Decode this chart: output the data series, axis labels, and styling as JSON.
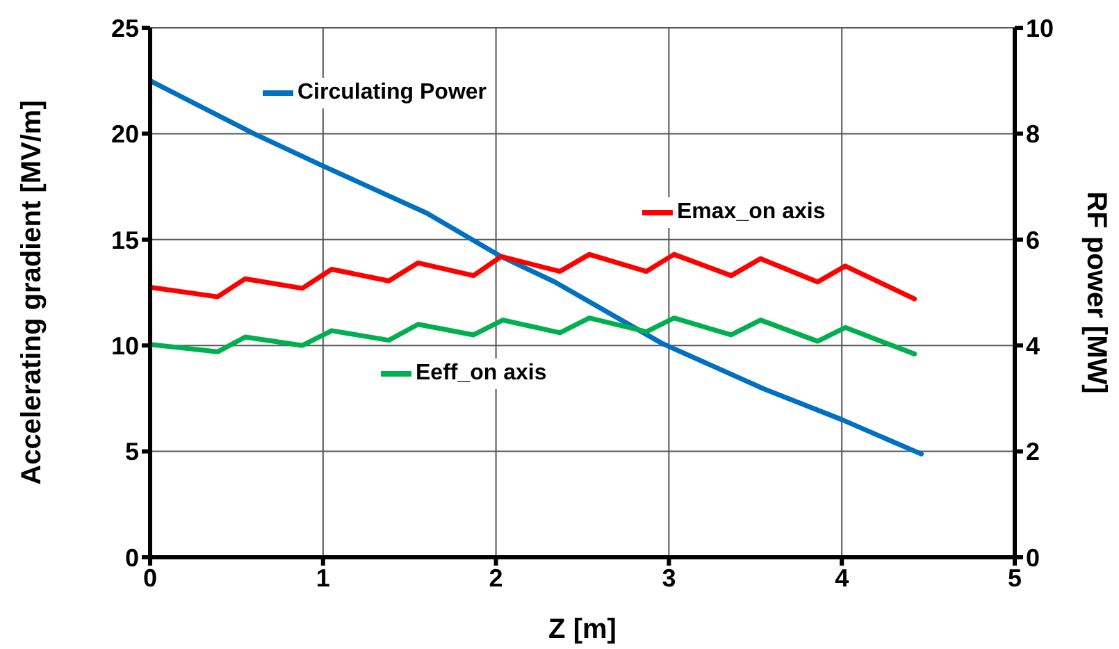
{
  "chart_data": {
    "type": "line",
    "xlabel": "Z [m]",
    "ylabel": "Accelerating gradient  [MV/m]",
    "y2label": "RF power [MW]",
    "xlim": [
      0,
      5
    ],
    "xticks": [
      0,
      1,
      2,
      3,
      4,
      5
    ],
    "ylim": [
      0,
      25
    ],
    "yticks": [
      0,
      5,
      10,
      15,
      20,
      25
    ],
    "y2lim": [
      0,
      10
    ],
    "y2ticks": [
      0,
      2,
      4,
      6,
      8,
      10
    ],
    "grid": true,
    "legend": "top left",
    "marker": "none",
    "line_style": "solid",
    "series": [
      {
        "name": "Circulating Power",
        "color": "#0070c0",
        "axis": "y2",
        "x": [
          0,
          0.6,
          1.0,
          1.6,
          2.03,
          2.34,
          2.96,
          3.55,
          4.0,
          4.46
        ],
        "values": [
          9.0,
          8.0,
          7.39,
          6.5,
          5.68,
          5.2,
          4.04,
          3.18,
          2.6,
          1.95
        ]
      },
      {
        "name": "Emax_on axis",
        "color": "#ff0000",
        "x": [
          0,
          0.39,
          0.55,
          0.88,
          1.05,
          1.38,
          1.55,
          1.87,
          2.03,
          2.37,
          2.54,
          2.87,
          3.03,
          3.36,
          3.53,
          3.86,
          4.02,
          4.42
        ],
        "values": [
          12.75,
          12.3,
          13.15,
          12.7,
          13.6,
          13.05,
          13.9,
          13.3,
          14.2,
          13.5,
          14.3,
          13.5,
          14.3,
          13.3,
          14.1,
          13.0,
          13.75,
          12.2
        ]
      },
      {
        "name": "Eeff_on axis",
        "color": "#00b050",
        "x": [
          0,
          0.39,
          0.55,
          0.88,
          1.05,
          1.38,
          1.55,
          1.87,
          2.04,
          2.37,
          2.54,
          2.87,
          3.03,
          3.36,
          3.53,
          3.86,
          4.02,
          4.42
        ],
        "values": [
          10.05,
          9.7,
          10.4,
          10.0,
          10.7,
          10.25,
          11.0,
          10.5,
          11.2,
          10.6,
          11.3,
          10.65,
          11.3,
          10.5,
          11.2,
          10.2,
          10.85,
          9.6
        ]
      }
    ]
  }
}
